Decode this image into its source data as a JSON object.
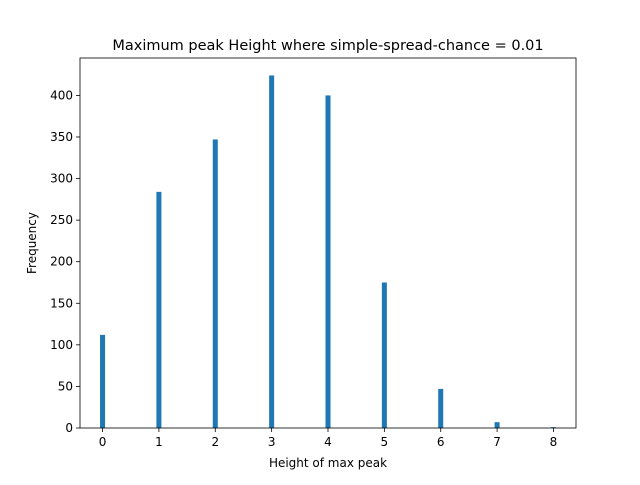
{
  "chart_data": {
    "type": "bar",
    "title": "Maximum peak Height where simple-spread-chance = 0.01",
    "xlabel": "Height of max peak",
    "ylabel": "Frequency",
    "x": [
      0,
      1,
      2,
      3,
      4,
      5,
      6,
      7,
      8
    ],
    "values": [
      112,
      284,
      347,
      424,
      400,
      175,
      47,
      7,
      1
    ],
    "xlim": [
      -0.4,
      8.4
    ],
    "ylim": [
      0,
      445
    ],
    "xticks": [
      "0",
      "1",
      "2",
      "3",
      "4",
      "5",
      "6",
      "7",
      "8"
    ],
    "yticks": [
      "0",
      "50",
      "100",
      "150",
      "200",
      "250",
      "300",
      "350",
      "400"
    ],
    "grid": false,
    "bar_color": "#1f77b4"
  }
}
